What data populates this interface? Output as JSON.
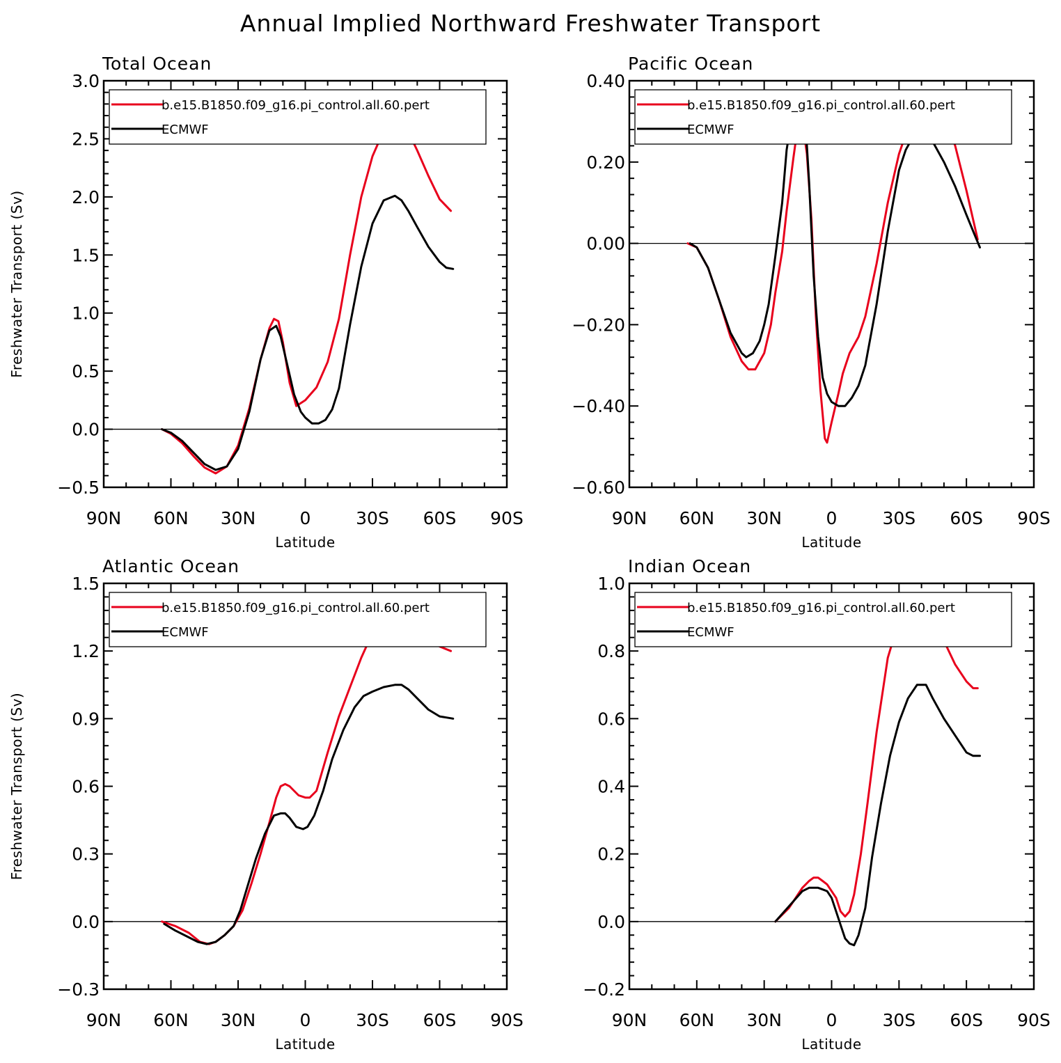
{
  "figure": {
    "title": "Annual Implied Northward Freshwater Transport"
  },
  "colors": {
    "model": "#e8001c",
    "obs": "#000000"
  },
  "chart_data": [
    {
      "type": "line",
      "title": "Total Ocean",
      "xlabel": "Latitude",
      "ylabel": "Freshwater Transport (Sv)",
      "xlim": [
        90,
        -90
      ],
      "ylim": [
        -0.5,
        3.0
      ],
      "x_ticks": [
        90,
        60,
        30,
        0,
        -30,
        -60,
        -90
      ],
      "x_tick_labels": [
        "90N",
        "60N",
        "30N",
        "0",
        "30S",
        "60S",
        "90S"
      ],
      "y_ticks": [
        -0.5,
        0.0,
        0.5,
        1.0,
        1.5,
        2.0,
        2.5,
        3.0
      ],
      "y_tick_labels": [
        "−0.5",
        "0.0",
        "0.5",
        "1.0",
        "1.5",
        "2.0",
        "2.5",
        "3.0"
      ],
      "zero_line": true,
      "legend_position": "top",
      "series": [
        {
          "name": "b.e15.B1850.f09_g16.pi_control.all.60.pert",
          "color": "#e8001c",
          "x": [
            64,
            60,
            55,
            50,
            45,
            40,
            35,
            30,
            25,
            20,
            16,
            14,
            12,
            10,
            7,
            4,
            0,
            -5,
            -10,
            -15,
            -20,
            -25,
            -30,
            -35,
            -40,
            -45,
            -50,
            -55,
            -60,
            -65
          ],
          "y": [
            0.0,
            -0.04,
            -0.12,
            -0.23,
            -0.33,
            -0.38,
            -0.32,
            -0.14,
            0.18,
            0.6,
            0.87,
            0.95,
            0.93,
            0.75,
            0.4,
            0.2,
            0.25,
            0.36,
            0.58,
            0.95,
            1.5,
            2.0,
            2.35,
            2.57,
            2.67,
            2.6,
            2.4,
            2.18,
            1.98,
            1.88
          ]
        },
        {
          "name": "ECMWF",
          "color": "#000000",
          "x": [
            64,
            60,
            55,
            50,
            45,
            40,
            35,
            30,
            25,
            20,
            16,
            13,
            11,
            8,
            5,
            2,
            0,
            -3,
            -6,
            -9,
            -12,
            -15,
            -20,
            -25,
            -30,
            -35,
            -40,
            -43,
            -46,
            -50,
            -55,
            -60,
            -63,
            -66
          ],
          "y": [
            0.0,
            -0.03,
            -0.1,
            -0.2,
            -0.3,
            -0.35,
            -0.32,
            -0.17,
            0.15,
            0.6,
            0.85,
            0.89,
            0.8,
            0.55,
            0.3,
            0.15,
            0.1,
            0.05,
            0.05,
            0.08,
            0.17,
            0.35,
            0.9,
            1.4,
            1.77,
            1.97,
            2.01,
            1.97,
            1.88,
            1.74,
            1.57,
            1.44,
            1.39,
            1.38
          ]
        }
      ]
    },
    {
      "type": "line",
      "title": "Pacific Ocean",
      "xlabel": "Latitude",
      "ylabel": "",
      "xlim": [
        90,
        -90
      ],
      "ylim": [
        -0.6,
        0.4
      ],
      "x_ticks": [
        90,
        60,
        30,
        0,
        -30,
        -60,
        -90
      ],
      "x_tick_labels": [
        "90N",
        "60N",
        "30N",
        "0",
        "30S",
        "60S",
        "90S"
      ],
      "y_ticks": [
        -0.6,
        -0.4,
        -0.2,
        0.0,
        0.2,
        0.4
      ],
      "y_tick_labels": [
        "−0.60",
        "−0.40",
        "−0.20",
        "0.00",
        "0.20",
        "0.40"
      ],
      "zero_line": true,
      "legend_position": "top",
      "series": [
        {
          "name": "b.e15.B1850.f09_g16.pi_control.all.60.pert",
          "color": "#e8001c",
          "x": [
            64,
            60,
            55,
            50,
            45,
            40,
            37,
            34,
            30,
            27,
            25,
            22,
            20,
            17,
            15,
            13,
            11,
            9,
            7,
            5,
            3,
            2,
            0,
            -3,
            -5,
            -8,
            -12,
            -15,
            -20,
            -25,
            -30,
            -35,
            -38,
            -41,
            -45,
            -50,
            -55,
            -60,
            -65
          ],
          "y": [
            0.0,
            -0.01,
            -0.06,
            -0.14,
            -0.23,
            -0.29,
            -0.31,
            -0.31,
            -0.27,
            -0.2,
            -0.12,
            -0.02,
            0.08,
            0.21,
            0.29,
            0.3,
            0.22,
            0.06,
            -0.18,
            -0.36,
            -0.48,
            -0.49,
            -0.44,
            -0.37,
            -0.32,
            -0.27,
            -0.23,
            -0.18,
            -0.05,
            0.1,
            0.22,
            0.3,
            0.34,
            0.355,
            0.35,
            0.32,
            0.24,
            0.13,
            0.01
          ]
        },
        {
          "name": "ECMWF",
          "color": "#000000",
          "x": [
            63,
            60,
            55,
            50,
            45,
            40,
            38,
            35,
            32,
            30,
            28,
            25,
            22,
            20,
            18,
            16,
            14,
            12,
            10,
            8,
            6,
            4,
            2,
            0,
            -3,
            -6,
            -9,
            -12,
            -15,
            -20,
            -25,
            -30,
            -33,
            -36,
            -39,
            -42,
            -45,
            -50,
            -55,
            -60,
            -63,
            -66
          ],
          "y": [
            0.0,
            -0.01,
            -0.06,
            -0.14,
            -0.22,
            -0.27,
            -0.28,
            -0.27,
            -0.24,
            -0.2,
            -0.15,
            -0.03,
            0.1,
            0.23,
            0.3,
            0.35,
            0.37,
            0.33,
            0.15,
            -0.08,
            -0.23,
            -0.33,
            -0.37,
            -0.39,
            -0.4,
            -0.4,
            -0.38,
            -0.35,
            -0.3,
            -0.15,
            0.03,
            0.18,
            0.23,
            0.26,
            0.27,
            0.27,
            0.25,
            0.2,
            0.14,
            0.07,
            0.03,
            -0.01
          ]
        }
      ]
    },
    {
      "type": "line",
      "title": "Atlantic Ocean",
      "xlabel": "Latitude",
      "ylabel": "Freshwater Transport (Sv)",
      "xlim": [
        90,
        -90
      ],
      "ylim": [
        -0.3,
        1.5
      ],
      "x_ticks": [
        90,
        60,
        30,
        0,
        -30,
        -60,
        -90
      ],
      "x_tick_labels": [
        "90N",
        "60N",
        "30N",
        "0",
        "30S",
        "60S",
        "90S"
      ],
      "y_ticks": [
        -0.3,
        0.0,
        0.3,
        0.6,
        0.9,
        1.2,
        1.5
      ],
      "y_tick_labels": [
        "−0.3",
        "0.0",
        "0.3",
        "0.6",
        "0.9",
        "1.2",
        "1.5"
      ],
      "zero_line": true,
      "legend_position": "top",
      "series": [
        {
          "name": "b.e15.B1850.f09_g16.pi_control.all.60.pert",
          "color": "#e8001c",
          "x": [
            64,
            58,
            52,
            47,
            43,
            40,
            36,
            32,
            28,
            24,
            20,
            16,
            13,
            11,
            9,
            7,
            5,
            3,
            0,
            -2,
            -5,
            -10,
            -15,
            -20,
            -25,
            -30,
            -35,
            -40,
            -45,
            -50,
            -55,
            -60,
            -65
          ],
          "y": [
            0.0,
            -0.02,
            -0.05,
            -0.09,
            -0.1,
            -0.09,
            -0.06,
            -0.02,
            0.05,
            0.17,
            0.3,
            0.44,
            0.55,
            0.6,
            0.61,
            0.6,
            0.58,
            0.56,
            0.55,
            0.55,
            0.58,
            0.75,
            0.91,
            1.04,
            1.17,
            1.28,
            1.34,
            1.37,
            1.36,
            1.31,
            1.26,
            1.22,
            1.2
          ]
        },
        {
          "name": "ECMWF",
          "color": "#000000",
          "x": [
            63,
            58,
            53,
            48,
            44,
            40,
            36,
            32,
            29,
            26,
            22,
            18,
            14,
            11,
            9,
            7,
            4,
            1,
            -1,
            -4,
            -8,
            -12,
            -17,
            -22,
            -26,
            -30,
            -35,
            -40,
            -43,
            -46,
            -50,
            -55,
            -60,
            -63,
            -66
          ],
          "y": [
            -0.01,
            -0.04,
            -0.065,
            -0.09,
            -0.1,
            -0.09,
            -0.06,
            -0.02,
            0.05,
            0.15,
            0.28,
            0.39,
            0.47,
            0.48,
            0.48,
            0.46,
            0.42,
            0.41,
            0.42,
            0.47,
            0.58,
            0.72,
            0.85,
            0.95,
            1.0,
            1.02,
            1.04,
            1.05,
            1.05,
            1.03,
            0.99,
            0.94,
            0.91,
            0.905,
            0.9
          ]
        }
      ]
    },
    {
      "type": "line",
      "title": "Indian Ocean",
      "xlabel": "Latitude",
      "ylabel": "",
      "xlim": [
        90,
        -90
      ],
      "ylim": [
        -0.2,
        1.0
      ],
      "x_ticks": [
        90,
        60,
        30,
        0,
        -30,
        -60,
        -90
      ],
      "x_tick_labels": [
        "90N",
        "60N",
        "30N",
        "0",
        "30S",
        "60S",
        "90S"
      ],
      "y_ticks": [
        -0.2,
        0.0,
        0.2,
        0.4,
        0.6,
        0.8,
        1.0
      ],
      "y_tick_labels": [
        "−0.2",
        "0.0",
        "0.2",
        "0.4",
        "0.6",
        "0.8",
        "1.0"
      ],
      "zero_line": true,
      "legend_position": "top",
      "series": [
        {
          "name": "b.e15.B1850.f09_g16.pi_control.all.60.pert",
          "color": "#e8001c",
          "x": [
            25,
            22,
            19,
            16,
            13,
            10,
            8,
            6,
            4,
            2,
            0,
            -2,
            -4,
            -6,
            -8,
            -10,
            -13,
            -16,
            -20,
            -25,
            -30,
            -35,
            -38,
            -40,
            -42,
            -45,
            -50,
            -55,
            -60,
            -63,
            -65
          ],
          "y": [
            0.0,
            0.02,
            0.04,
            0.07,
            0.1,
            0.12,
            0.13,
            0.13,
            0.12,
            0.11,
            0.09,
            0.07,
            0.03,
            0.015,
            0.03,
            0.08,
            0.2,
            0.35,
            0.56,
            0.78,
            0.89,
            0.93,
            0.94,
            0.94,
            0.93,
            0.9,
            0.83,
            0.76,
            0.71,
            0.69,
            0.69
          ]
        },
        {
          "name": "ECMWF",
          "color": "#000000",
          "x": [
            25,
            21,
            17,
            13,
            10,
            8,
            6,
            4,
            2,
            0,
            -2,
            -4,
            -6,
            -8,
            -10,
            -12,
            -15,
            -18,
            -22,
            -26,
            -30,
            -34,
            -38,
            -40,
            -42,
            -45,
            -50,
            -55,
            -60,
            -63,
            -66
          ],
          "y": [
            0.0,
            0.03,
            0.06,
            0.09,
            0.1,
            0.1,
            0.1,
            0.095,
            0.09,
            0.07,
            0.03,
            -0.01,
            -0.05,
            -0.065,
            -0.07,
            -0.04,
            0.04,
            0.19,
            0.35,
            0.49,
            0.59,
            0.66,
            0.7,
            0.7,
            0.7,
            0.66,
            0.6,
            0.55,
            0.5,
            0.49,
            0.49
          ]
        }
      ]
    }
  ]
}
